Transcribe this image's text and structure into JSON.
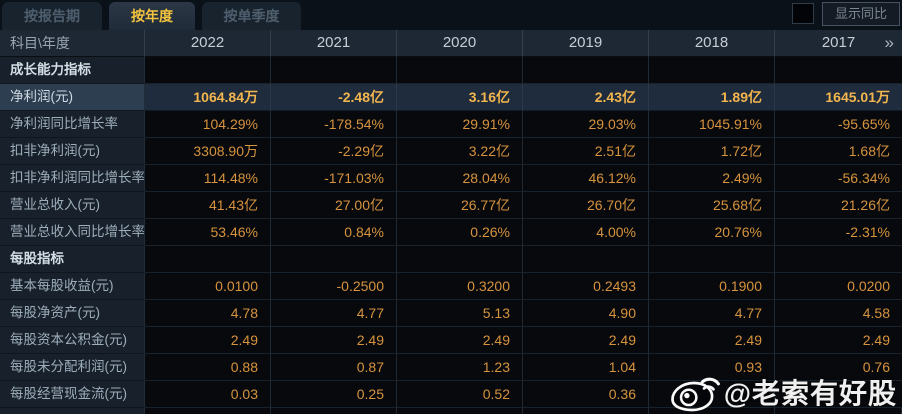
{
  "tabs": {
    "report": "按报告期",
    "yearly": "按年度",
    "quarterly": "按单季度"
  },
  "controls": {
    "show_yoy": "显示同比",
    "next_icon": "»"
  },
  "header": {
    "corner": "科目\\年度",
    "years": [
      "2022",
      "2021",
      "2020",
      "2019",
      "2018",
      "2017"
    ]
  },
  "rows": [
    {
      "label": "成长能力指标",
      "type": "section",
      "values": [
        "",
        "",
        "",
        "",
        "",
        ""
      ]
    },
    {
      "label": "净利润(元)",
      "type": "highlight",
      "values": [
        "1064.84万",
        "-2.48亿",
        "3.16亿",
        "2.43亿",
        "1.89亿",
        "1645.01万"
      ]
    },
    {
      "label": "净利润同比增长率",
      "type": "normal",
      "values": [
        "104.29%",
        "-178.54%",
        "29.91%",
        "29.03%",
        "1045.91%",
        "-95.65%"
      ]
    },
    {
      "label": "扣非净利润(元)",
      "type": "normal",
      "values": [
        "3308.90万",
        "-2.29亿",
        "3.22亿",
        "2.51亿",
        "1.72亿",
        "1.68亿"
      ]
    },
    {
      "label": "扣非净利润同比增长率",
      "type": "normal",
      "values": [
        "114.48%",
        "-171.03%",
        "28.04%",
        "46.12%",
        "2.49%",
        "-56.34%"
      ]
    },
    {
      "label": "营业总收入(元)",
      "type": "normal",
      "values": [
        "41.43亿",
        "27.00亿",
        "26.77亿",
        "26.70亿",
        "25.68亿",
        "21.26亿"
      ]
    },
    {
      "label": "营业总收入同比增长率",
      "type": "normal",
      "values": [
        "53.46%",
        "0.84%",
        "0.26%",
        "4.00%",
        "20.76%",
        "-2.31%"
      ]
    },
    {
      "label": "每股指标",
      "type": "section",
      "values": [
        "",
        "",
        "",
        "",
        "",
        ""
      ]
    },
    {
      "label": "基本每股收益(元)",
      "type": "normal",
      "values": [
        "0.0100",
        "-0.2500",
        "0.3200",
        "0.2493",
        "0.1900",
        "0.0200"
      ]
    },
    {
      "label": "每股净资产(元)",
      "type": "normal",
      "values": [
        "4.78",
        "4.77",
        "5.13",
        "4.90",
        "4.77",
        "4.58"
      ]
    },
    {
      "label": "每股资本公积金(元)",
      "type": "normal",
      "values": [
        "2.49",
        "2.49",
        "2.49",
        "2.49",
        "2.49",
        "2.49"
      ]
    },
    {
      "label": "每股未分配利润(元)",
      "type": "normal",
      "values": [
        "0.88",
        "0.87",
        "1.23",
        "1.04",
        "0.93",
        "0.76"
      ]
    },
    {
      "label": "每股经营现金流(元)",
      "type": "normal",
      "values": [
        "0.03",
        "0.25",
        "0.52",
        "0.36",
        "",
        ""
      ]
    }
  ],
  "watermark": {
    "text": "@老索有好股"
  },
  "colors": {
    "accent_gold": "#f3c33f",
    "value_orange": "#d7933e",
    "highlight_value": "#f3b54e",
    "highlight_row_bg": "#1e2c3e",
    "header_bg": "#1d2834",
    "label_bg": "#18212b",
    "cell_bg": "#07090c"
  }
}
